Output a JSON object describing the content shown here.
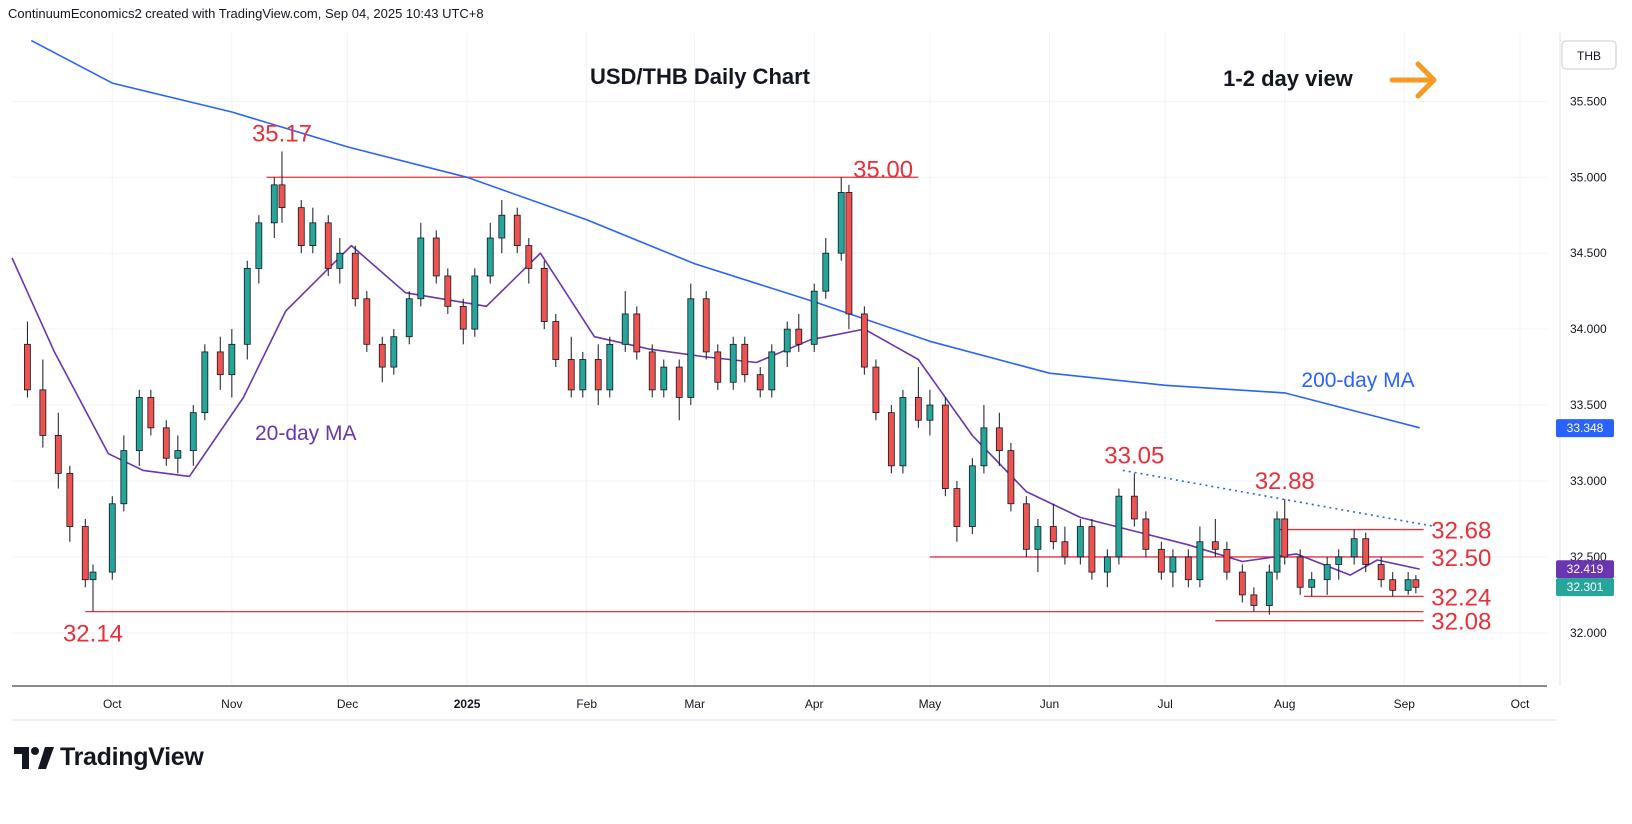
{
  "header": {
    "text": "ContinuumEconomics2 created with TradingView.com, Sep 04, 2025 10:43 UTC+8"
  },
  "logo": {
    "text": "TradingView",
    "icon": "tradingview-logo-icon"
  },
  "colors": {
    "up": "#26a69a",
    "down": "#ef5350",
    "ma200": "#2962ff",
    "ma20": "#6a35b0",
    "annotation": "#e8303a",
    "arrow": "#f59a23"
  },
  "chart_data": {
    "type": "candlestick",
    "title": "USD/THB Daily Chart",
    "subtitle": "1-2 day view",
    "currency_label": "THB",
    "yaxis": {
      "ticks": [
        "32.000",
        "32.500",
        "33.000",
        "33.500",
        "34.000",
        "34.500",
        "35.000",
        "35.500"
      ],
      "range": [
        31.65,
        35.95
      ],
      "position": "right"
    },
    "xaxis": {
      "ticks": [
        "Oct",
        "Nov",
        "Dec",
        "2025",
        "Feb",
        "Mar",
        "Apr",
        "May",
        "Jun",
        "Jul",
        "Aug",
        "Sep",
        "Oct"
      ],
      "range": [
        "2024-09-05",
        "2025-10-08"
      ]
    },
    "grid": true,
    "price_badges": [
      {
        "value": "33.348",
        "series": "200-day MA"
      },
      {
        "value": "32.419",
        "series": "20-day MA"
      },
      {
        "value": "32.301",
        "series": "last price"
      }
    ],
    "annotations": [
      {
        "text": "35.17",
        "date": "2024-11-14",
        "value": 35.17
      },
      {
        "text": "35.00",
        "date": "2025-04-09",
        "value": 35.0
      },
      {
        "text": "33.05",
        "date": "2025-06-23",
        "value": 33.05
      },
      {
        "text": "32.88",
        "date": "2025-08-01",
        "value": 32.88
      },
      {
        "text": "32.68",
        "date": "2025-09-08",
        "value": 32.68
      },
      {
        "text": "32.50",
        "date": "2025-09-08",
        "value": 32.5
      },
      {
        "text": "32.24",
        "date": "2025-09-08",
        "value": 32.24
      },
      {
        "text": "32.08",
        "date": "2025-09-08",
        "value": 32.08
      },
      {
        "text": "32.14",
        "date": "2024-09-26",
        "value": 32.14
      }
    ],
    "series_labels": [
      {
        "name": "200-day MA",
        "date": "2025-08-20",
        "value": 33.62
      },
      {
        "name": "20-day MA",
        "date": "2024-11-07",
        "value": 33.27
      }
    ],
    "levels": [
      {
        "value": 35.0,
        "from": "2024-11-10",
        "to": "2025-04-28"
      },
      {
        "value": 32.68,
        "from": "2025-07-30",
        "to": "2025-09-06"
      },
      {
        "value": 32.5,
        "from": "2025-05-01",
        "to": "2025-09-06"
      },
      {
        "value": 32.24,
        "from": "2025-08-06",
        "to": "2025-09-06"
      },
      {
        "value": 32.14,
        "from": "2024-09-24",
        "to": "2025-09-06"
      },
      {
        "value": 32.08,
        "from": "2025-07-14",
        "to": "2025-09-06"
      }
    ],
    "trendline": {
      "style": "dotted",
      "from": {
        "date": "2025-06-20",
        "value": 33.07
      },
      "to": {
        "date": "2025-09-09",
        "value": 32.7
      }
    },
    "ma200": [
      [
        "2024-09-10",
        35.9
      ],
      [
        "2024-10-01",
        35.62
      ],
      [
        "2024-11-01",
        35.43
      ],
      [
        "2024-12-01",
        35.2
      ],
      [
        "2025-01-01",
        35.0
      ],
      [
        "2025-02-01",
        34.72
      ],
      [
        "2025-03-01",
        34.43
      ],
      [
        "2025-04-01",
        34.18
      ],
      [
        "2025-05-01",
        33.92
      ],
      [
        "2025-06-01",
        33.71
      ],
      [
        "2025-07-01",
        33.63
      ],
      [
        "2025-08-01",
        33.58
      ],
      [
        "2025-09-05",
        33.35
      ]
    ],
    "ma20": [
      [
        "2024-09-05",
        34.47
      ],
      [
        "2024-09-16",
        33.85
      ],
      [
        "2024-09-30",
        33.18
      ],
      [
        "2024-10-09",
        33.07
      ],
      [
        "2024-10-21",
        33.03
      ],
      [
        "2024-11-04",
        33.55
      ],
      [
        "2024-11-15",
        34.12
      ],
      [
        "2024-12-02",
        34.55
      ],
      [
        "2024-12-16",
        34.24
      ],
      [
        "2025-01-06",
        34.15
      ],
      [
        "2025-01-20",
        34.5
      ],
      [
        "2025-02-03",
        33.95
      ],
      [
        "2025-02-17",
        33.87
      ],
      [
        "2025-03-03",
        33.82
      ],
      [
        "2025-03-17",
        33.78
      ],
      [
        "2025-03-31",
        33.93
      ],
      [
        "2025-04-14",
        34.0
      ],
      [
        "2025-04-28",
        33.8
      ],
      [
        "2025-05-12",
        33.3
      ],
      [
        "2025-05-26",
        32.93
      ],
      [
        "2025-06-09",
        32.76
      ],
      [
        "2025-06-23",
        32.67
      ],
      [
        "2025-07-07",
        32.58
      ],
      [
        "2025-07-21",
        32.47
      ],
      [
        "2025-08-04",
        32.52
      ],
      [
        "2025-08-18",
        32.38
      ],
      [
        "2025-08-25",
        32.48
      ],
      [
        "2025-09-05",
        32.42
      ]
    ],
    "ohlc": [
      [
        "2024-09-09",
        33.9,
        34.05,
        33.55,
        33.6
      ],
      [
        "2024-09-13",
        33.6,
        33.8,
        33.22,
        33.3
      ],
      [
        "2024-09-17",
        33.3,
        33.45,
        32.95,
        33.05
      ],
      [
        "2024-09-20",
        33.05,
        33.1,
        32.6,
        32.7
      ],
      [
        "2024-09-24",
        32.7,
        32.75,
        32.3,
        32.35
      ],
      [
        "2024-09-26",
        32.35,
        32.45,
        32.14,
        32.4
      ],
      [
        "2024-10-01",
        32.4,
        32.9,
        32.35,
        32.85
      ],
      [
        "2024-10-04",
        32.85,
        33.3,
        32.8,
        33.2
      ],
      [
        "2024-10-08",
        33.2,
        33.6,
        33.1,
        33.55
      ],
      [
        "2024-10-11",
        33.55,
        33.6,
        33.3,
        33.35
      ],
      [
        "2024-10-15",
        33.35,
        33.4,
        33.1,
        33.15
      ],
      [
        "2024-10-18",
        33.15,
        33.3,
        33.05,
        33.2
      ],
      [
        "2024-10-22",
        33.2,
        33.5,
        33.1,
        33.45
      ],
      [
        "2024-10-25",
        33.45,
        33.9,
        33.4,
        33.85
      ],
      [
        "2024-10-29",
        33.85,
        33.95,
        33.6,
        33.7
      ],
      [
        "2024-11-01",
        33.7,
        34.0,
        33.55,
        33.9
      ],
      [
        "2024-11-05",
        33.9,
        34.45,
        33.8,
        34.4
      ],
      [
        "2024-11-08",
        34.4,
        34.75,
        34.3,
        34.7
      ],
      [
        "2024-11-12",
        34.7,
        35.0,
        34.6,
        34.95
      ],
      [
        "2024-11-14",
        34.95,
        35.17,
        34.7,
        34.8
      ],
      [
        "2024-11-19",
        34.8,
        34.85,
        34.5,
        34.55
      ],
      [
        "2024-11-22",
        34.55,
        34.8,
        34.5,
        34.7
      ],
      [
        "2024-11-26",
        34.7,
        34.75,
        34.35,
        34.4
      ],
      [
        "2024-11-29",
        34.4,
        34.6,
        34.3,
        34.5
      ],
      [
        "2024-12-03",
        34.5,
        34.55,
        34.15,
        34.2
      ],
      [
        "2024-12-06",
        34.2,
        34.25,
        33.85,
        33.9
      ],
      [
        "2024-12-10",
        33.9,
        33.95,
        33.65,
        33.75
      ],
      [
        "2024-12-13",
        33.75,
        34.0,
        33.7,
        33.95
      ],
      [
        "2024-12-17",
        33.95,
        34.25,
        33.9,
        34.2
      ],
      [
        "2024-12-20",
        34.2,
        34.7,
        34.15,
        34.6
      ],
      [
        "2024-12-24",
        34.6,
        34.65,
        34.3,
        34.35
      ],
      [
        "2024-12-27",
        34.35,
        34.4,
        34.1,
        34.15
      ],
      [
        "2024-12-31",
        34.15,
        34.2,
        33.9,
        34.0
      ],
      [
        "2025-01-03",
        34.0,
        34.4,
        33.95,
        34.35
      ],
      [
        "2025-01-07",
        34.35,
        34.7,
        34.3,
        34.6
      ],
      [
        "2025-01-10",
        34.6,
        34.85,
        34.5,
        34.75
      ],
      [
        "2025-01-14",
        34.75,
        34.8,
        34.5,
        34.55
      ],
      [
        "2025-01-17",
        34.55,
        34.6,
        34.3,
        34.4
      ],
      [
        "2025-01-21",
        34.4,
        34.45,
        34.0,
        34.05
      ],
      [
        "2025-01-24",
        34.05,
        34.1,
        33.75,
        33.8
      ],
      [
        "2025-01-28",
        33.8,
        33.95,
        33.55,
        33.6
      ],
      [
        "2025-01-31",
        33.6,
        33.85,
        33.55,
        33.8
      ],
      [
        "2025-02-04",
        33.8,
        33.9,
        33.5,
        33.6
      ],
      [
        "2025-02-07",
        33.6,
        33.95,
        33.55,
        33.9
      ],
      [
        "2025-02-11",
        33.9,
        34.25,
        33.85,
        34.1
      ],
      [
        "2025-02-14",
        34.1,
        34.15,
        33.8,
        33.85
      ],
      [
        "2025-02-18",
        33.85,
        33.9,
        33.55,
        33.6
      ],
      [
        "2025-02-21",
        33.6,
        33.8,
        33.55,
        33.75
      ],
      [
        "2025-02-25",
        33.75,
        33.8,
        33.4,
        33.55
      ],
      [
        "2025-02-28",
        33.55,
        34.3,
        33.5,
        34.2
      ],
      [
        "2025-03-04",
        34.2,
        34.25,
        33.8,
        33.85
      ],
      [
        "2025-03-07",
        33.85,
        33.9,
        33.6,
        33.65
      ],
      [
        "2025-03-11",
        33.65,
        33.95,
        33.6,
        33.9
      ],
      [
        "2025-03-14",
        33.9,
        33.95,
        33.65,
        33.7
      ],
      [
        "2025-03-18",
        33.7,
        33.75,
        33.55,
        33.6
      ],
      [
        "2025-03-21",
        33.6,
        33.9,
        33.55,
        33.85
      ],
      [
        "2025-03-25",
        33.85,
        34.05,
        33.75,
        34.0
      ],
      [
        "2025-03-28",
        34.0,
        34.1,
        33.85,
        33.9
      ],
      [
        "2025-04-01",
        33.9,
        34.3,
        33.85,
        34.25
      ],
      [
        "2025-04-04",
        34.25,
        34.6,
        34.2,
        34.5
      ],
      [
        "2025-04-08",
        34.5,
        35.0,
        34.45,
        34.9
      ],
      [
        "2025-04-10",
        34.9,
        34.95,
        34.0,
        34.1
      ],
      [
        "2025-04-14",
        34.1,
        34.15,
        33.7,
        33.75
      ],
      [
        "2025-04-17",
        33.75,
        33.8,
        33.4,
        33.45
      ],
      [
        "2025-04-21",
        33.45,
        33.5,
        33.05,
        33.1
      ],
      [
        "2025-04-24",
        33.1,
        33.6,
        33.05,
        33.55
      ],
      [
        "2025-04-28",
        33.55,
        33.75,
        33.35,
        33.4
      ],
      [
        "2025-05-01",
        33.4,
        33.6,
        33.3,
        33.5
      ],
      [
        "2025-05-05",
        33.5,
        33.55,
        32.9,
        32.95
      ],
      [
        "2025-05-08",
        32.95,
        33.0,
        32.6,
        32.7
      ],
      [
        "2025-05-12",
        32.7,
        33.15,
        32.65,
        33.1
      ],
      [
        "2025-05-15",
        33.1,
        33.5,
        33.05,
        33.35
      ],
      [
        "2025-05-19",
        33.35,
        33.45,
        33.1,
        33.2
      ],
      [
        "2025-05-22",
        33.2,
        33.25,
        32.8,
        32.85
      ],
      [
        "2025-05-26",
        32.85,
        32.9,
        32.5,
        32.55
      ],
      [
        "2025-05-29",
        32.55,
        32.75,
        32.4,
        32.7
      ],
      [
        "2025-06-02",
        32.7,
        32.85,
        32.55,
        32.6
      ],
      [
        "2025-06-05",
        32.6,
        32.7,
        32.45,
        32.5
      ],
      [
        "2025-06-09",
        32.5,
        32.75,
        32.45,
        32.7
      ],
      [
        "2025-06-12",
        32.7,
        32.75,
        32.35,
        32.4
      ],
      [
        "2025-06-16",
        32.4,
        32.55,
        32.3,
        32.5
      ],
      [
        "2025-06-19",
        32.5,
        32.95,
        32.45,
        32.9
      ],
      [
        "2025-06-23",
        32.9,
        33.05,
        32.7,
        32.75
      ],
      [
        "2025-06-26",
        32.75,
        32.8,
        32.5,
        32.55
      ],
      [
        "2025-06-30",
        32.55,
        32.6,
        32.35,
        32.4
      ],
      [
        "2025-07-03",
        32.4,
        32.55,
        32.3,
        32.5
      ],
      [
        "2025-07-07",
        32.5,
        32.55,
        32.3,
        32.35
      ],
      [
        "2025-07-10",
        32.35,
        32.7,
        32.3,
        32.6
      ],
      [
        "2025-07-14",
        32.6,
        32.75,
        32.5,
        32.55
      ],
      [
        "2025-07-17",
        32.55,
        32.6,
        32.35,
        32.4
      ],
      [
        "2025-07-21",
        32.4,
        32.45,
        32.2,
        32.25
      ],
      [
        "2025-07-24",
        32.25,
        32.3,
        32.14,
        32.18
      ],
      [
        "2025-07-28",
        32.18,
        32.45,
        32.12,
        32.4
      ],
      [
        "2025-07-30",
        32.4,
        32.8,
        32.35,
        32.75
      ],
      [
        "2025-08-01",
        32.75,
        32.88,
        32.45,
        32.5
      ],
      [
        "2025-08-05",
        32.5,
        32.55,
        32.25,
        32.3
      ],
      [
        "2025-08-08",
        32.3,
        32.4,
        32.24,
        32.35
      ],
      [
        "2025-08-12",
        32.35,
        32.5,
        32.25,
        32.45
      ],
      [
        "2025-08-15",
        32.45,
        32.55,
        32.35,
        32.5
      ],
      [
        "2025-08-19",
        32.5,
        32.68,
        32.45,
        32.62
      ],
      [
        "2025-08-22",
        32.62,
        32.66,
        32.4,
        32.45
      ],
      [
        "2025-08-26",
        32.45,
        32.5,
        32.3,
        32.35
      ],
      [
        "2025-08-29",
        32.35,
        32.4,
        32.24,
        32.28
      ],
      [
        "2025-09-02",
        32.28,
        32.4,
        32.25,
        32.35
      ],
      [
        "2025-09-04",
        32.35,
        32.38,
        32.26,
        32.3
      ]
    ]
  }
}
